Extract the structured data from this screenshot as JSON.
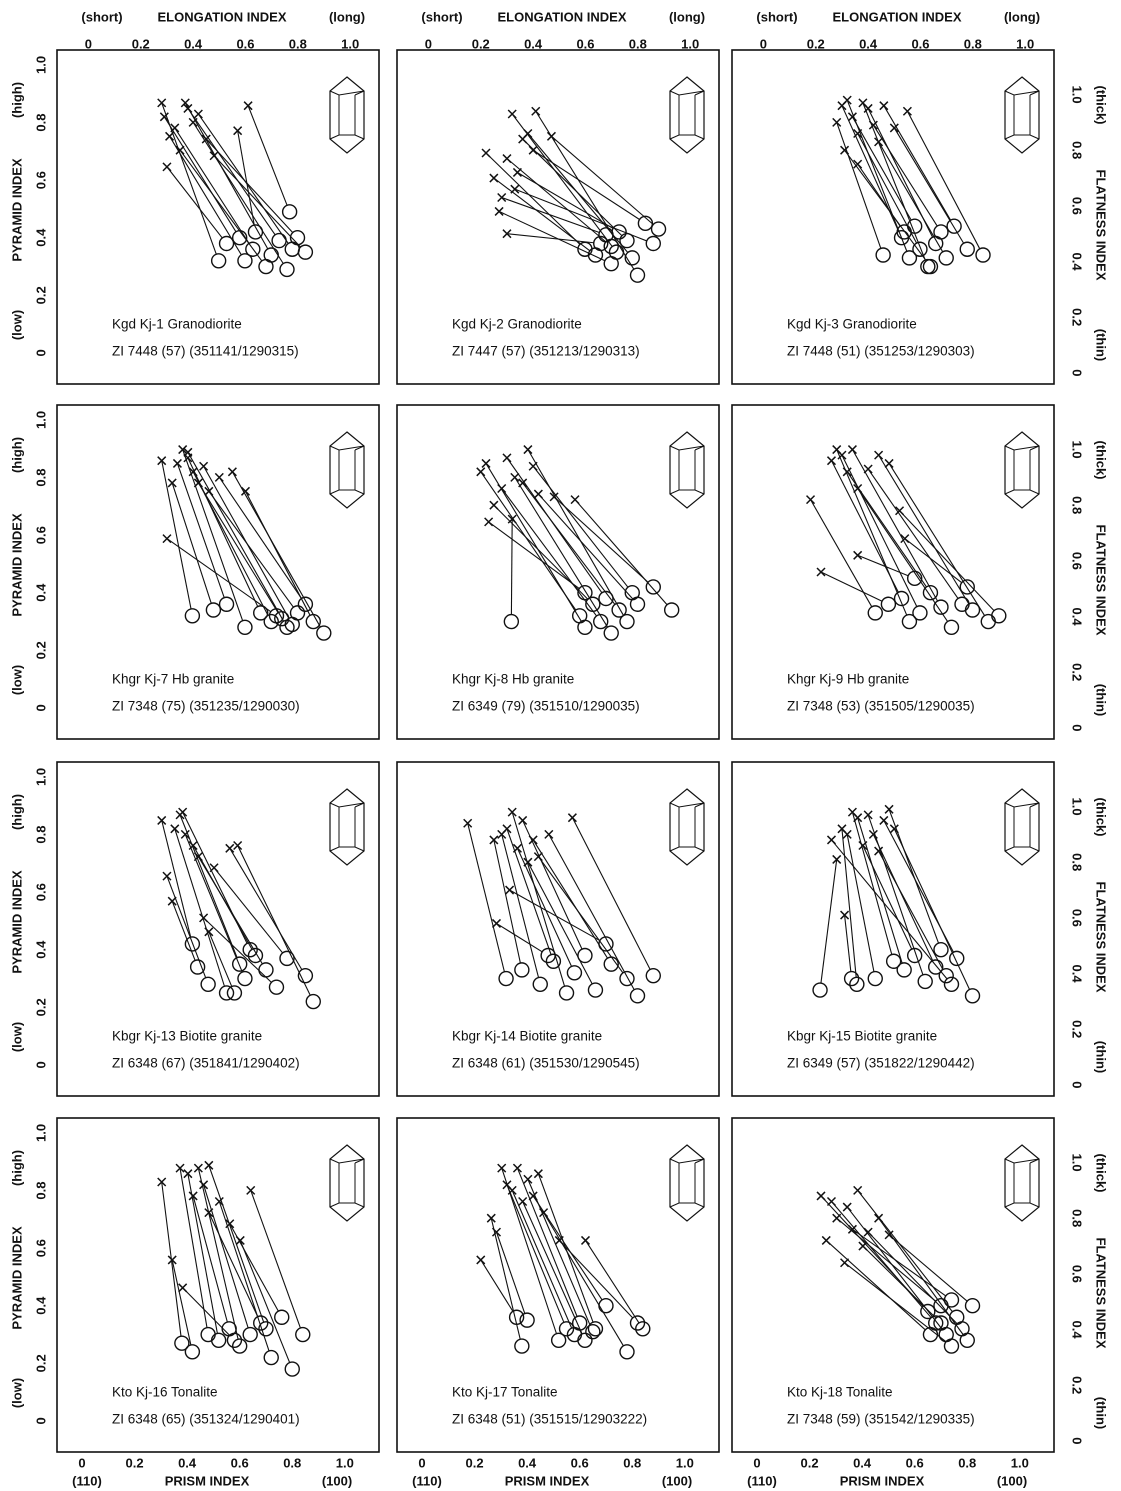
{
  "chart_data": {
    "type": "scatter",
    "x_axis": {
      "left": "(110)",
      "title": "PRISM  INDEX",
      "right": "(100)"
    },
    "x2_axis": {
      "left": "(short)",
      "title": "ELONGATION  INDEX",
      "right": "(long)"
    },
    "y_axis": {
      "low": "(low)",
      "title": "PYRAMID  INDEX",
      "high": "(high)"
    },
    "y2_axis": {
      "low": "(thin)",
      "title": "FLATNESS  INDEX",
      "high": "(thick)"
    },
    "xlim": [
      -0.095,
      1.13
    ],
    "xticks": [
      0,
      0.2,
      0.4,
      0.6,
      0.8,
      {
        "value": 1,
        "label": "1.0"
      }
    ],
    "x2lim": [
      -0.12,
      1.11
    ],
    "x2ticks": [
      0,
      0.2,
      0.4,
      0.6,
      0.8,
      {
        "value": 1,
        "label": "1.0"
      }
    ],
    "ylim": [
      -0.108,
      1.052
    ],
    "yticks": [
      0,
      0.2,
      0.4,
      0.6,
      0.8,
      {
        "value": 1,
        "label": "1.0"
      }
    ],
    "y2lim": [
      -0.04,
      1.16
    ],
    "y2ticks": [
      0,
      0.2,
      0.4,
      0.6,
      0.8,
      {
        "value": 1,
        "label": "1.0"
      }
    ],
    "panels": [
      {
        "label": "Kgd   Kj-1   Granodiorite",
        "sample": "ZI 7448 (57) (351141/1290315)",
        "elongation": [
          0.28,
          0.29,
          0.31,
          0.33,
          0.35,
          0.37,
          0.38,
          0.4,
          0.42,
          0.45,
          0.48,
          0.61,
          0.57,
          0.3
        ],
        "flatness": [
          0.97,
          0.92,
          0.85,
          0.88,
          0.8,
          0.97,
          0.95,
          0.9,
          0.93,
          0.84,
          0.78,
          0.96,
          0.87,
          0.74
        ],
        "prism": [
          0.52,
          0.6,
          0.62,
          0.65,
          0.7,
          0.72,
          0.75,
          0.78,
          0.8,
          0.82,
          0.85,
          0.79,
          0.66,
          0.55
        ],
        "pyramid": [
          0.32,
          0.4,
          0.32,
          0.36,
          0.3,
          0.34,
          0.39,
          0.29,
          0.36,
          0.4,
          0.35,
          0.49,
          0.42,
          0.38
        ]
      },
      {
        "label": "Kgd   Kj-2   Granodiorite",
        "sample": "ZI 7447 (57) (351213/1290313)",
        "elongation": [
          0.22,
          0.25,
          0.28,
          0.3,
          0.32,
          0.34,
          0.36,
          0.38,
          0.4,
          0.3,
          0.27,
          0.33,
          0.47,
          0.41
        ],
        "flatness": [
          0.79,
          0.7,
          0.63,
          0.77,
          0.93,
          0.72,
          0.84,
          0.86,
          0.8,
          0.5,
          0.58,
          0.66,
          0.85,
          0.94
        ],
        "prism": [
          0.62,
          0.66,
          0.7,
          0.72,
          0.74,
          0.75,
          0.78,
          0.8,
          0.85,
          0.68,
          0.72,
          0.88,
          0.9,
          0.82
        ],
        "pyramid": [
          0.36,
          0.34,
          0.41,
          0.37,
          0.35,
          0.42,
          0.39,
          0.33,
          0.45,
          0.38,
          0.31,
          0.38,
          0.43,
          0.27
        ]
      },
      {
        "label": "Kgd   Kj-3   Granodiorite",
        "sample": "ZI 7448 (51) (351253/1290303)",
        "elongation": [
          0.28,
          0.3,
          0.32,
          0.34,
          0.36,
          0.38,
          0.4,
          0.42,
          0.44,
          0.46,
          0.5,
          0.55,
          0.36,
          0.31
        ],
        "flatness": [
          0.9,
          0.96,
          0.98,
          0.92,
          0.86,
          0.97,
          0.95,
          0.89,
          0.83,
          0.96,
          0.88,
          0.94,
          0.75,
          0.8
        ],
        "prism": [
          0.48,
          0.55,
          0.58,
          0.6,
          0.62,
          0.65,
          0.68,
          0.7,
          0.72,
          0.75,
          0.8,
          0.86,
          0.56,
          0.66
        ],
        "pyramid": [
          0.34,
          0.4,
          0.33,
          0.44,
          0.36,
          0.3,
          0.38,
          0.42,
          0.33,
          0.44,
          0.36,
          0.34,
          0.42,
          0.3
        ]
      },
      {
        "label": "Khgr   Kj-7   Hb granite",
        "sample": "ZI 7348 (75) (351235/1290030)",
        "elongation": [
          0.28,
          0.32,
          0.34,
          0.36,
          0.38,
          0.4,
          0.42,
          0.44,
          0.46,
          0.5,
          0.55,
          0.6,
          0.3,
          0.38
        ],
        "flatness": [
          0.96,
          0.88,
          0.95,
          1.0,
          0.97,
          0.92,
          0.88,
          0.94,
          0.85,
          0.9,
          0.92,
          0.85,
          0.68,
          0.99
        ],
        "prism": [
          0.42,
          0.5,
          0.55,
          0.62,
          0.68,
          0.72,
          0.76,
          0.8,
          0.82,
          0.85,
          0.92,
          0.88,
          0.74,
          0.78
        ],
        "pyramid": [
          0.32,
          0.34,
          0.36,
          0.28,
          0.33,
          0.3,
          0.31,
          0.29,
          0.33,
          0.36,
          0.26,
          0.3,
          0.32,
          0.28
        ]
      },
      {
        "label": "Khgr   Kj-8   Hb granite",
        "sample": "ZI 6349 (79)  (351510/1290035)",
        "elongation": [
          0.2,
          0.22,
          0.25,
          0.28,
          0.3,
          0.33,
          0.36,
          0.38,
          0.4,
          0.42,
          0.48,
          0.56,
          0.32,
          0.23
        ],
        "flatness": [
          0.92,
          0.95,
          0.8,
          0.86,
          0.97,
          0.9,
          0.88,
          1.0,
          0.94,
          0.84,
          0.83,
          0.82,
          0.75,
          0.74
        ],
        "prism": [
          0.6,
          0.62,
          0.65,
          0.68,
          0.7,
          0.72,
          0.75,
          0.78,
          0.8,
          0.82,
          0.88,
          0.95,
          0.34,
          0.62
        ],
        "pyramid": [
          0.32,
          0.28,
          0.36,
          0.3,
          0.38,
          0.26,
          0.34,
          0.3,
          0.4,
          0.36,
          0.42,
          0.34,
          0.3,
          0.4
        ]
      },
      {
        "label": "Khgr   Kj-9   Hb granite",
        "sample": "ZI 7348 (53)  (351505/1290035)",
        "elongation": [
          0.18,
          0.22,
          0.26,
          0.28,
          0.3,
          0.32,
          0.34,
          0.36,
          0.4,
          0.44,
          0.48,
          0.52,
          0.36,
          0.54
        ],
        "flatness": [
          0.82,
          0.56,
          0.96,
          1.0,
          0.98,
          0.92,
          1.0,
          0.86,
          0.93,
          0.98,
          0.95,
          0.78,
          0.62,
          0.68
        ],
        "prism": [
          0.45,
          0.5,
          0.55,
          0.58,
          0.62,
          0.66,
          0.7,
          0.74,
          0.78,
          0.82,
          0.88,
          0.92,
          0.6,
          0.8
        ],
        "pyramid": [
          0.33,
          0.36,
          0.38,
          0.3,
          0.33,
          0.4,
          0.35,
          0.28,
          0.36,
          0.34,
          0.3,
          0.32,
          0.45,
          0.42
        ]
      },
      {
        "label": "Kbgr  Kj-13 Biotite granite",
        "sample": "ZI 6348 (67) (351841/1290402)",
        "elongation": [
          0.28,
          0.3,
          0.33,
          0.35,
          0.37,
          0.4,
          0.42,
          0.44,
          0.48,
          0.54,
          0.57,
          0.32,
          0.36,
          0.46
        ],
        "flatness": [
          0.95,
          0.75,
          0.92,
          0.97,
          0.9,
          0.86,
          0.82,
          0.6,
          0.78,
          0.85,
          0.86,
          0.66,
          0.98,
          0.55
        ],
        "prism": [
          0.42,
          0.48,
          0.55,
          0.6,
          0.62,
          0.66,
          0.7,
          0.74,
          0.78,
          0.85,
          0.88,
          0.44,
          0.64,
          0.58
        ],
        "pyramid": [
          0.42,
          0.28,
          0.25,
          0.35,
          0.3,
          0.38,
          0.33,
          0.27,
          0.37,
          0.31,
          0.22,
          0.34,
          0.4,
          0.25
        ]
      },
      {
        "label": "Kbgr   Kj-14  Biotite granite",
        "sample": "ZI 6348 (61)  (351530/1290545)",
        "elongation": [
          0.15,
          0.25,
          0.28,
          0.3,
          0.32,
          0.34,
          0.36,
          0.38,
          0.4,
          0.42,
          0.46,
          0.55,
          0.26,
          0.31
        ],
        "flatness": [
          0.94,
          0.88,
          0.9,
          0.92,
          0.98,
          0.85,
          0.95,
          0.8,
          0.88,
          0.82,
          0.9,
          0.96,
          0.58,
          0.7
        ],
        "prism": [
          0.32,
          0.38,
          0.45,
          0.5,
          0.55,
          0.58,
          0.62,
          0.66,
          0.72,
          0.78,
          0.82,
          0.88,
          0.48,
          0.7
        ],
        "pyramid": [
          0.3,
          0.33,
          0.28,
          0.36,
          0.25,
          0.32,
          0.38,
          0.26,
          0.35,
          0.3,
          0.24,
          0.31,
          0.38,
          0.42
        ]
      },
      {
        "label": "Kbgr   Kj-15  Biotite granite",
        "sample": "ZI 6349 (57)  (351822/1290442)",
        "elongation": [
          0.28,
          0.3,
          0.32,
          0.34,
          0.36,
          0.38,
          0.4,
          0.42,
          0.44,
          0.46,
          0.5,
          0.26,
          0.31,
          0.48
        ],
        "flatness": [
          0.81,
          0.92,
          0.9,
          0.98,
          0.96,
          0.86,
          0.97,
          0.9,
          0.84,
          0.95,
          0.92,
          0.88,
          0.61,
          0.99
        ],
        "prism": [
          0.24,
          0.38,
          0.45,
          0.52,
          0.56,
          0.6,
          0.64,
          0.68,
          0.72,
          0.76,
          0.82,
          0.74,
          0.36,
          0.7
        ],
        "pyramid": [
          0.26,
          0.28,
          0.3,
          0.36,
          0.33,
          0.38,
          0.29,
          0.34,
          0.31,
          0.37,
          0.24,
          0.28,
          0.3,
          0.4
        ]
      },
      {
        "label": "Kto   Kj-16   Tonalite",
        "sample": "ZI 6348 (65)  (351324/1290401)",
        "elongation": [
          0.28,
          0.32,
          0.35,
          0.38,
          0.4,
          0.42,
          0.44,
          0.46,
          0.5,
          0.54,
          0.58,
          0.62,
          0.36,
          0.46
        ],
        "flatness": [
          0.93,
          0.65,
          0.98,
          0.96,
          0.88,
          0.98,
          0.92,
          0.82,
          0.86,
          0.78,
          0.72,
          0.9,
          0.55,
          0.99
        ],
        "prism": [
          0.38,
          0.42,
          0.48,
          0.52,
          0.56,
          0.6,
          0.64,
          0.68,
          0.72,
          0.76,
          0.8,
          0.84,
          0.58,
          0.7
        ],
        "pyramid": [
          0.27,
          0.24,
          0.3,
          0.28,
          0.32,
          0.26,
          0.3,
          0.34,
          0.22,
          0.36,
          0.18,
          0.3,
          0.28,
          0.32
        ]
      },
      {
        "label": "Kto   Kj-17   Tonalite",
        "sample": "ZI 6348 (51)  (351515/12903222)",
        "elongation": [
          0.2,
          0.24,
          0.28,
          0.3,
          0.32,
          0.34,
          0.36,
          0.38,
          0.4,
          0.44,
          0.5,
          0.6,
          0.26,
          0.42
        ],
        "flatness": [
          0.65,
          0.8,
          0.98,
          0.92,
          0.9,
          0.98,
          0.86,
          0.94,
          0.88,
          0.82,
          0.72,
          0.72,
          0.75,
          0.96
        ],
        "prism": [
          0.36,
          0.38,
          0.52,
          0.55,
          0.58,
          0.6,
          0.62,
          0.65,
          0.7,
          0.78,
          0.82,
          0.84,
          0.4,
          0.66
        ],
        "pyramid": [
          0.36,
          0.26,
          0.28,
          0.32,
          0.3,
          0.34,
          0.28,
          0.31,
          0.4,
          0.24,
          0.34,
          0.32,
          0.35,
          0.32
        ]
      },
      {
        "label": "Kto   Kj-18   Tonalite",
        "sample": "ZI  7348 (59)  (351542/1290335)",
        "elongation": [
          0.22,
          0.26,
          0.28,
          0.32,
          0.34,
          0.36,
          0.4,
          0.44,
          0.48,
          0.24,
          0.31,
          0.38
        ],
        "flatness": [
          0.88,
          0.86,
          0.8,
          0.84,
          0.76,
          0.9,
          0.75,
          0.8,
          0.74,
          0.72,
          0.64,
          0.7
        ],
        "prism": [
          0.65,
          0.68,
          0.7,
          0.72,
          0.74,
          0.76,
          0.78,
          0.8,
          0.82,
          0.66,
          0.74,
          0.7
        ],
        "pyramid": [
          0.38,
          0.34,
          0.4,
          0.3,
          0.42,
          0.36,
          0.32,
          0.28,
          0.4,
          0.3,
          0.26,
          0.34
        ]
      }
    ]
  }
}
